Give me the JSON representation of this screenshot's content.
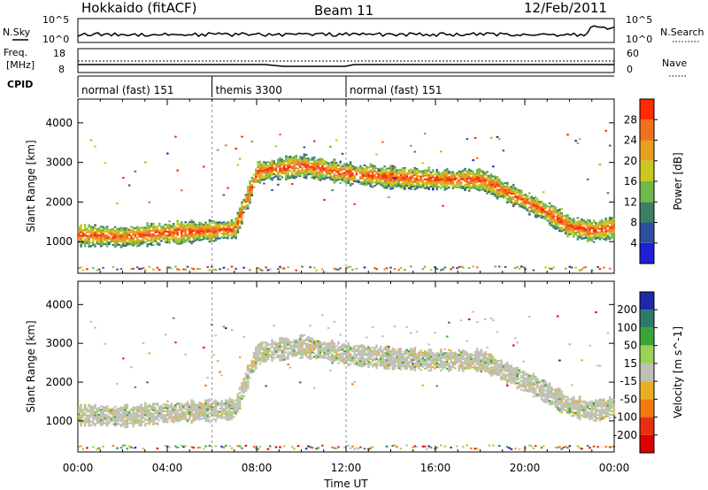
{
  "header": {
    "station": "Hokkaido (fitACF)",
    "beam": "Beam 11",
    "date": "12/Feb/2011"
  },
  "strip_labels": {
    "nsky": "N.Sky",
    "nsearch": "N.Search",
    "freq_line1": "Freq.",
    "freq_line2": "[MHz]",
    "nave": "Nave",
    "cpid": "CPID",
    "noise_tick_top": "10^5",
    "noise_tick_bottom": "10^0",
    "freq_ticks": [
      "8",
      "18"
    ],
    "nave_ticks": [
      "60",
      "0"
    ]
  },
  "cpid_segments": [
    {
      "label": "normal (fast) 151",
      "start_hour": 0
    },
    {
      "label": "themis 3300",
      "start_hour": 6
    },
    {
      "label": "normal (fast) 151",
      "start_hour": 12
    }
  ],
  "x_axis": {
    "label": "Time UT",
    "ticks": [
      "00:00",
      "04:00",
      "08:00",
      "12:00",
      "16:00",
      "20:00",
      "00:00"
    ]
  },
  "chart_data": [
    {
      "type": "heatmap",
      "title": "",
      "ylabel": "Slant Range [km]",
      "xlabel": "Time UT",
      "xlim_hours": [
        0,
        24
      ],
      "ylim": [
        200,
        4600
      ],
      "yticks": [
        1000,
        2000,
        3000,
        4000
      ],
      "colorbar": {
        "label": "Power [dB]",
        "ticks": [
          4,
          8,
          12,
          16,
          20,
          24,
          28
        ],
        "colors": [
          "#1f1fd6",
          "#2f4f9f",
          "#3c7f62",
          "#6fb94a",
          "#c8c81e",
          "#e6a01e",
          "#f07020",
          "#ff2a00"
        ]
      },
      "echo_bands": [
        {
          "hours": [
            0,
            2,
            4,
            6,
            7,
            8,
            10,
            12,
            14,
            16,
            18,
            20,
            21,
            22,
            23,
            24
          ],
          "range_km": [
            1150,
            1100,
            1200,
            1250,
            1300,
            2750,
            2900,
            2700,
            2600,
            2550,
            2550,
            2000,
            1700,
            1350,
            1250,
            1350
          ]
        }
      ]
    },
    {
      "type": "heatmap",
      "title": "",
      "ylabel": "Slant Range [km]",
      "xlabel": "Time UT",
      "xlim_hours": [
        0,
        24
      ],
      "ylim": [
        200,
        4600
      ],
      "yticks": [
        1000,
        2000,
        3000,
        4000
      ],
      "colorbar": {
        "label": "Velocity [m s^-1]",
        "ticks": [
          200,
          100,
          50,
          15,
          -15,
          -50,
          -100,
          -200
        ],
        "colors": [
          "#1c2aa8",
          "#2e7a6a",
          "#3aa63a",
          "#9bd25a",
          "#c0c0b8",
          "#e8b020",
          "#f07a10",
          "#e83010",
          "#dd0000"
        ]
      },
      "echo_bands": [
        {
          "hours": [
            0,
            2,
            4,
            6,
            7,
            8,
            10,
            12,
            14,
            16,
            18,
            20,
            21,
            22,
            23,
            24
          ],
          "range_km": [
            1150,
            1100,
            1200,
            1250,
            1300,
            2750,
            2900,
            2700,
            2600,
            2550,
            2550,
            2000,
            1700,
            1350,
            1250,
            1350
          ]
        }
      ]
    }
  ]
}
